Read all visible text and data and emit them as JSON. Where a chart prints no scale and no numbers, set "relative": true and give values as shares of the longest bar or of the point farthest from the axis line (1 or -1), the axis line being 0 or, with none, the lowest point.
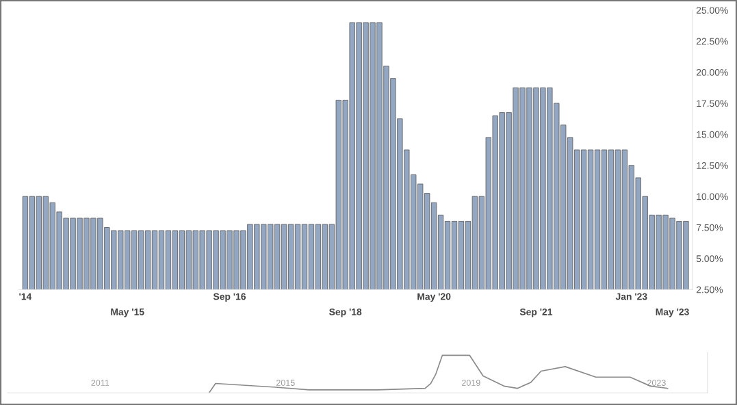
{
  "chart_data": [
    {
      "type": "bar",
      "color": "#93a7c2",
      "categories": [
        "'14",
        null,
        null,
        null,
        null,
        null,
        null,
        null,
        null,
        null,
        null,
        null,
        null,
        null,
        null,
        "May '15",
        null,
        null,
        null,
        null,
        null,
        null,
        null,
        null,
        null,
        null,
        null,
        null,
        null,
        null,
        "Sep '16",
        null,
        null,
        null,
        null,
        null,
        null,
        null,
        null,
        null,
        null,
        null,
        null,
        null,
        null,
        null,
        null,
        "Sep '18",
        null,
        null,
        null,
        null,
        null,
        null,
        null,
        null,
        null,
        null,
        null,
        null,
        "May '20",
        null,
        null,
        null,
        null,
        null,
        null,
        null,
        null,
        null,
        null,
        null,
        null,
        null,
        null,
        "Sep '21",
        null,
        null,
        null,
        null,
        null,
        null,
        null,
        null,
        null,
        null,
        null,
        null,
        null,
        "Jan '23",
        null,
        null,
        null,
        null,
        null,
        "May '23",
        null,
        null
      ],
      "values": [
        10,
        10,
        10,
        10,
        9.5,
        8.75,
        8.25,
        8.25,
        8.25,
        8.25,
        8.25,
        8.25,
        7.5,
        7.25,
        7.25,
        7.25,
        7.25,
        7.25,
        7.25,
        7.25,
        7.25,
        7.25,
        7.25,
        7.25,
        7.25,
        7.25,
        7.25,
        7.25,
        7.25,
        7.25,
        7.25,
        7.25,
        7.25,
        7.75,
        7.75,
        7.75,
        7.75,
        7.75,
        7.75,
        7.75,
        7.75,
        7.75,
        7.75,
        7.75,
        7.75,
        7.75,
        17.75,
        17.75,
        24,
        24,
        24,
        24,
        24,
        20.5,
        19.5,
        16.25,
        13.75,
        11.75,
        11,
        10.25,
        9.5,
        8.5,
        8,
        8,
        8,
        8,
        10,
        10,
        14.75,
        16.5,
        16.75,
        16.75,
        18.75,
        18.75,
        18.75,
        18.75,
        18.75,
        18.75,
        17.5,
        15.75,
        14.75,
        13.75,
        13.75,
        13.75,
        13.75,
        13.75,
        13.75,
        13.75,
        13.75,
        12.5,
        11.5,
        10,
        8.5,
        8.5,
        8.5,
        8.25,
        8,
        8
      ],
      "ylim": [
        2.5,
        25
      ],
      "yticks": [
        {
          "value": 2.5,
          "label": "2.50%"
        },
        {
          "value": 5,
          "label": "5.00%"
        },
        {
          "value": 7.5,
          "label": "7.50%"
        },
        {
          "value": 10,
          "label": "10.00%"
        },
        {
          "value": 12.5,
          "label": "12.50%"
        },
        {
          "value": 15,
          "label": "15.00%"
        },
        {
          "value": 17.5,
          "label": "17.50%"
        },
        {
          "value": 20,
          "label": "20.00%"
        },
        {
          "value": 22.5,
          "label": "22.50%"
        },
        {
          "value": 25,
          "label": "25.00%"
        }
      ],
      "grid": false
    },
    {
      "type": "line",
      "color": "#8a8a8a",
      "relative": true,
      "tick_labels": "x",
      "x": [
        2013.35,
        2013.49,
        2014.78,
        2015.51,
        2016.99,
        2018.01,
        2018.13,
        2018.24,
        2018.38,
        2018.97,
        2019.26,
        2019.71,
        2020.0,
        2020.29,
        2020.51,
        2021.03,
        2021.69,
        2022.43,
        2022.87,
        2023.24
      ],
      "values": [
        0,
        0.25,
        0.15,
        0.08,
        0.08,
        0.12,
        0.25,
        0.5,
        1,
        1,
        0.45,
        0.18,
        0.12,
        0.28,
        0.58,
        0.7,
        0.42,
        0.42,
        0.18,
        0.12
      ],
      "xlim": [
        2009,
        2024.1
      ],
      "xticks": [
        2011,
        2015,
        2019,
        2023
      ],
      "grid": false
    }
  ]
}
